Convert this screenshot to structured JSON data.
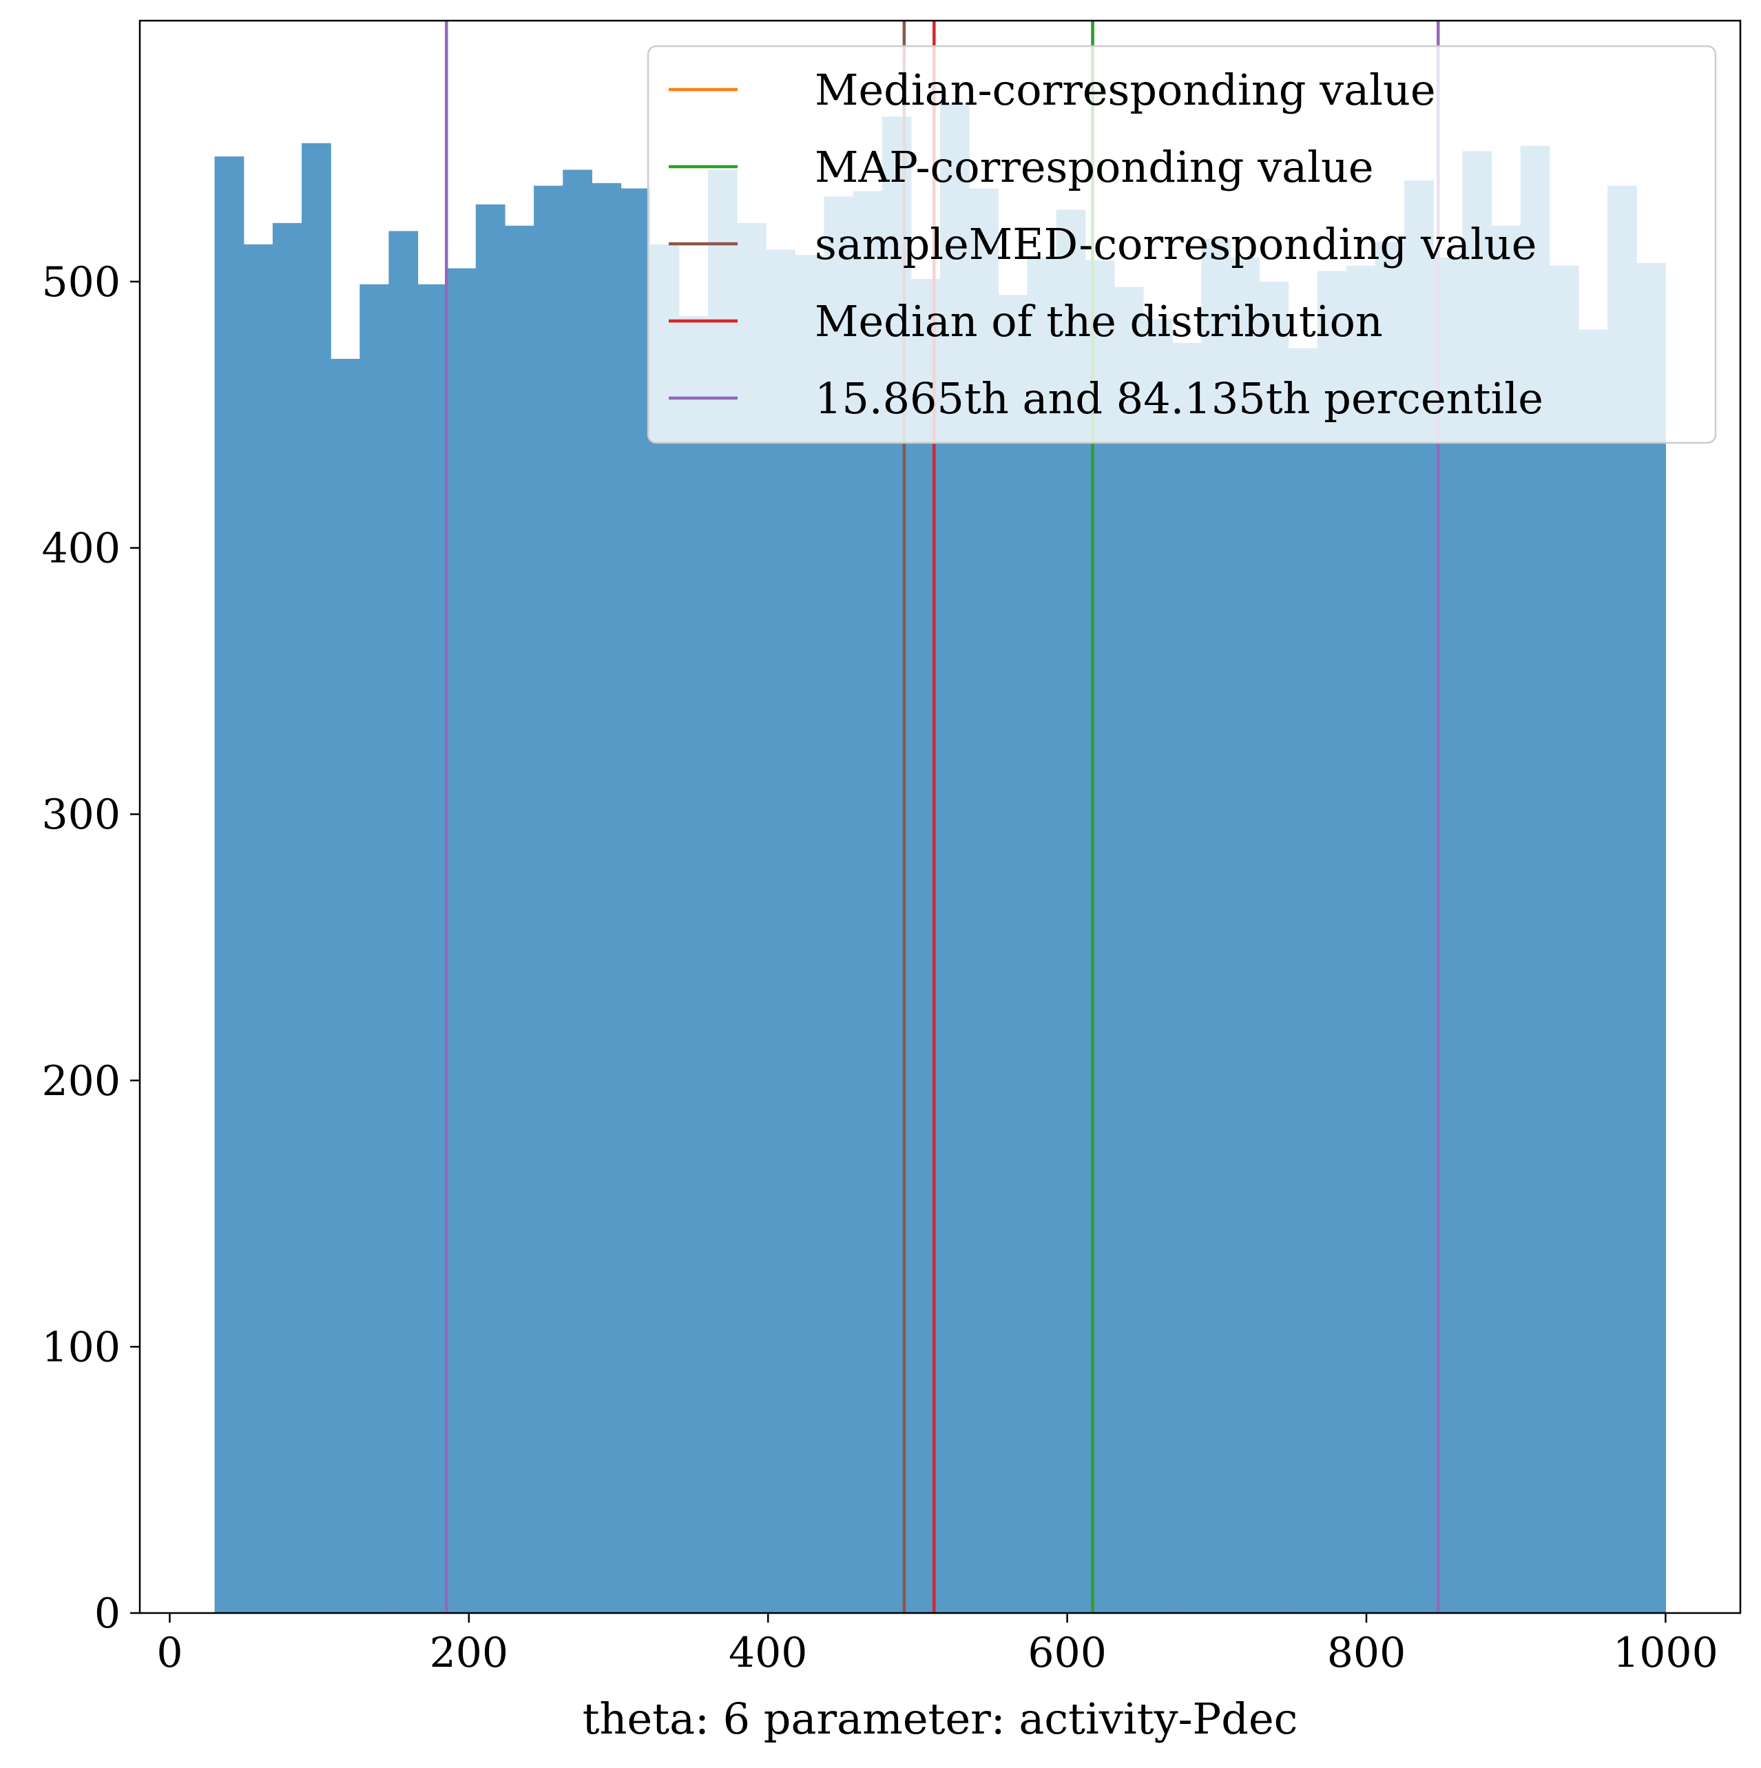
{
  "chart_data": {
    "type": "bar",
    "title": "",
    "xlabel": "theta: 6 parameter: activity-Pdec",
    "ylabel": "",
    "xlim": [
      -20,
      1050
    ],
    "ylim": [
      0,
      598
    ],
    "xticks": [
      0,
      200,
      400,
      600,
      800,
      1000
    ],
    "yticks": [
      0,
      100,
      200,
      300,
      400,
      500
    ],
    "xtick_labels": [
      "0",
      "200",
      "400",
      "600",
      "800",
      "1000"
    ],
    "ytick_labels": [
      "0",
      "100",
      "200",
      "300",
      "400",
      "500"
    ],
    "grid": false,
    "legend_position": "upper right",
    "bar_color": "#5799c7",
    "bin_start": 30,
    "bin_width": 19.4,
    "values": [
      547,
      514,
      522,
      552,
      471,
      499,
      519,
      499,
      505,
      529,
      521,
      536,
      542,
      537,
      535,
      514,
      487,
      542,
      522,
      512,
      510,
      532,
      534,
      562,
      501,
      567,
      535,
      495,
      509,
      527,
      508,
      498,
      486,
      477,
      516,
      509,
      500,
      475,
      504,
      506,
      515,
      538,
      509,
      549,
      521,
      551,
      506,
      482,
      536,
      507
    ],
    "vlines": [
      {
        "name": "Median-corresponding value",
        "x": 617,
        "color": "#ff7f0e"
      },
      {
        "name": "MAP-corresponding value",
        "x": 617,
        "color": "#2ca02c"
      },
      {
        "name": "sampleMED-corresponding value",
        "x": 491,
        "color": "#8c564b"
      },
      {
        "name": "Median of the distribution",
        "x": 511,
        "color": "#d62728"
      },
      {
        "name": "15.865th and 84.135th percentile",
        "x": 185,
        "color": "#9467bd"
      },
      {
        "name": "",
        "x": 848,
        "color": "#9467bd"
      }
    ],
    "legend": [
      {
        "label": "Median-corresponding value",
        "color": "#ff7f0e"
      },
      {
        "label": "MAP-corresponding value",
        "color": "#2ca02c"
      },
      {
        "label": "sampleMED-corresponding value",
        "color": "#8c564b"
      },
      {
        "label": "Median of the distribution",
        "color": "#d62728"
      },
      {
        "label": "15.865th and 84.135th percentile",
        "color": "#9467bd"
      }
    ]
  }
}
